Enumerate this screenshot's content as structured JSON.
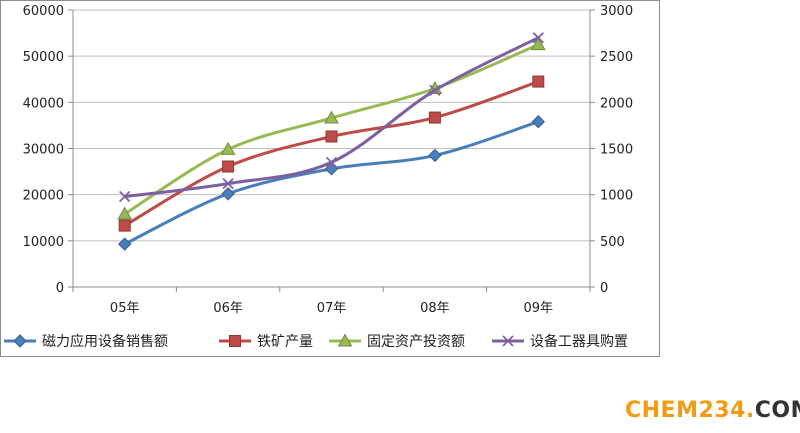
{
  "chart_data": {
    "type": "line",
    "title": "",
    "xlabel": "",
    "ylabel": "",
    "categories": [
      "05年",
      "06年",
      "07年",
      "08年",
      "09年"
    ],
    "y_left": {
      "min": 0,
      "max": 60000,
      "step": 10000,
      "ticks": [
        "0",
        "10000",
        "20000",
        "30000",
        "40000",
        "50000",
        "60000"
      ]
    },
    "y_right": {
      "min": 0,
      "max": 3000,
      "step": 500,
      "ticks": [
        "0",
        "500",
        "1000",
        "1500",
        "2000",
        "2500",
        "3000"
      ]
    },
    "grid": "horizontal",
    "legend_position": "bottom",
    "series": [
      {
        "name": "磁力应用设备销售额",
        "axis": "left",
        "marker": "diamond",
        "color": "#4a7ebb",
        "values": [
          9300,
          20200,
          25600,
          28500,
          35800
        ]
      },
      {
        "name": "铁矿产量",
        "axis": "left",
        "marker": "square",
        "color": "#be4b48",
        "values": [
          13300,
          26100,
          32600,
          36700,
          44500
        ]
      },
      {
        "name": "固定资产投资额",
        "axis": "left",
        "marker": "triangle",
        "color": "#98b954",
        "values": [
          15800,
          29800,
          36600,
          43000,
          52500
        ]
      },
      {
        "name": "设备工器具购置",
        "axis": "right",
        "marker": "x",
        "color": "#7d60a0",
        "values": [
          980,
          1120,
          1350,
          2130,
          2700
        ]
      }
    ]
  },
  "watermark": {
    "main": "CHEM234",
    "dot": ".",
    "suffix": "COM"
  }
}
